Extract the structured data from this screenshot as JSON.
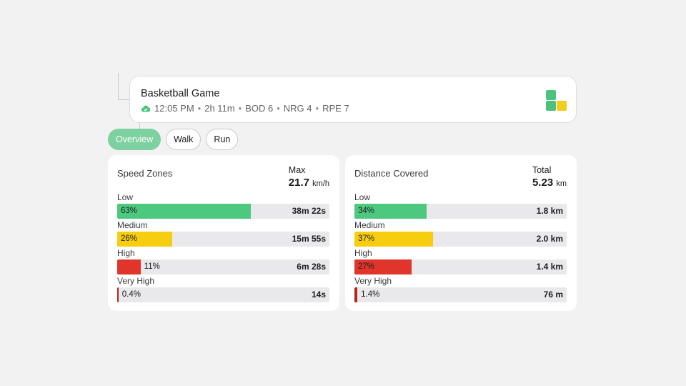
{
  "activity": {
    "title": "Basketball Game",
    "meta": [
      "12:05 PM",
      "2h 11m",
      "BOD 6",
      "NRG 4",
      "RPE 7"
    ],
    "separator": "•"
  },
  "tabs": [
    {
      "label": "Overview",
      "active": true
    },
    {
      "label": "Walk",
      "active": false
    },
    {
      "label": "Run",
      "active": false
    }
  ],
  "speed_zones": {
    "title": "Speed Zones",
    "stat_label": "Max",
    "stat_value": "21.7",
    "stat_unit": "km/h",
    "zones": [
      {
        "label": "Low",
        "percent_text": "63%",
        "percent": 63,
        "value": "38m 22s",
        "color": "#4cc97f",
        "label_inside": true
      },
      {
        "label": "Medium",
        "percent_text": "26%",
        "percent": 26,
        "value": "15m 55s",
        "color": "#f7cd0f",
        "label_inside": true
      },
      {
        "label": "High",
        "percent_text": "11%",
        "percent": 11,
        "value": "6m 28s",
        "color": "#e0352b",
        "label_inside": false
      },
      {
        "label": "Very High",
        "percent_text": "0.4%",
        "percent": 0.4,
        "value": "14s",
        "color": "#b3261e",
        "label_inside": false
      }
    ]
  },
  "distance": {
    "title": "Distance Covered",
    "stat_label": "Total",
    "stat_value": "5.23",
    "stat_unit": "km",
    "zones": [
      {
        "label": "Low",
        "percent_text": "34%",
        "percent": 34,
        "value": "1.8 km",
        "color": "#4cc97f",
        "label_inside": true
      },
      {
        "label": "Medium",
        "percent_text": "37%",
        "percent": 37,
        "value": "2.0 km",
        "color": "#f7cd0f",
        "label_inside": true
      },
      {
        "label": "High",
        "percent_text": "27%",
        "percent": 27,
        "value": "1.4 km",
        "color": "#e0352b",
        "label_inside": true
      },
      {
        "label": "Very High",
        "percent_text": "1.4%",
        "percent": 1.4,
        "value": "76 m",
        "color": "#b3261e",
        "label_inside": false
      }
    ]
  }
}
